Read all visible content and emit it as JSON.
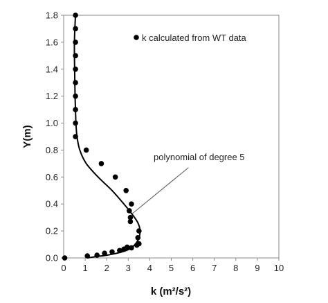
{
  "chart_data": {
    "type": "scatter",
    "xlabel": "k (m²/s²)",
    "ylabel": "Y(m)",
    "xlim": [
      0,
      10
    ],
    "ylim": [
      0,
      1.8
    ],
    "x_ticks": [
      0,
      1,
      2,
      3,
      4,
      5,
      6,
      7,
      8,
      9,
      10
    ],
    "y_ticks": [
      0.0,
      0.2,
      0.4,
      0.6,
      0.8,
      1.0,
      1.2,
      1.4,
      1.6,
      1.8
    ],
    "y_tick_labels": [
      "0.0",
      "0.2",
      "0.4",
      "0.6",
      "0.8",
      "1.0",
      "1.2",
      "1.4",
      "1.6",
      "1.8"
    ],
    "grid": false,
    "legend": "top-right",
    "series": [
      {
        "name": "k calculated from WT data",
        "kind": "points",
        "color": "#000000",
        "points": [
          [
            0.05,
            0.0
          ],
          [
            1.1,
            0.015
          ],
          [
            1.55,
            0.02
          ],
          [
            1.9,
            0.035
          ],
          [
            2.25,
            0.045
          ],
          [
            2.6,
            0.055
          ],
          [
            2.8,
            0.065
          ],
          [
            2.95,
            0.08
          ],
          [
            3.15,
            0.075
          ],
          [
            3.4,
            0.095
          ],
          [
            3.5,
            0.105
          ],
          [
            3.45,
            0.15
          ],
          [
            3.5,
            0.2
          ],
          [
            3.1,
            0.27
          ],
          [
            3.1,
            0.3
          ],
          [
            3.05,
            0.35
          ],
          [
            3.15,
            0.4
          ],
          [
            2.9,
            0.5
          ],
          [
            2.4,
            0.6
          ],
          [
            1.75,
            0.7
          ],
          [
            1.05,
            0.8
          ],
          [
            0.55,
            0.9
          ],
          [
            0.55,
            1.0
          ],
          [
            0.55,
            1.1
          ],
          [
            0.55,
            1.2
          ],
          [
            0.55,
            1.3
          ],
          [
            0.55,
            1.4
          ],
          [
            0.55,
            1.5
          ],
          [
            0.55,
            1.6
          ],
          [
            0.55,
            1.7
          ],
          [
            0.55,
            1.8
          ]
        ]
      },
      {
        "kind": "line",
        "color": "#000000",
        "points": [
          [
            1.1,
            0.0
          ],
          [
            1.5,
            0.01
          ],
          [
            2.0,
            0.02
          ],
          [
            2.6,
            0.04
          ],
          [
            3.1,
            0.07
          ],
          [
            3.45,
            0.13
          ],
          [
            3.55,
            0.2
          ],
          [
            3.45,
            0.26
          ],
          [
            3.2,
            0.32
          ],
          [
            2.8,
            0.4
          ],
          [
            2.25,
            0.5
          ],
          [
            1.6,
            0.6
          ],
          [
            1.05,
            0.7
          ],
          [
            0.75,
            0.8
          ],
          [
            0.62,
            0.9
          ],
          [
            0.57,
            1.0
          ],
          [
            0.55,
            1.1
          ],
          [
            0.53,
            1.2
          ],
          [
            0.52,
            1.3
          ],
          [
            0.51,
            1.4
          ],
          [
            0.5,
            1.5
          ],
          [
            0.5,
            1.6
          ],
          [
            0.52,
            1.7
          ],
          [
            0.55,
            1.8
          ]
        ]
      }
    ],
    "annotations": [
      {
        "text": "polynomial of degree 5",
        "arrow_to": [
          3.2,
          0.33
        ],
        "arrow_from": [
          5.8,
          0.67
        ]
      }
    ]
  }
}
